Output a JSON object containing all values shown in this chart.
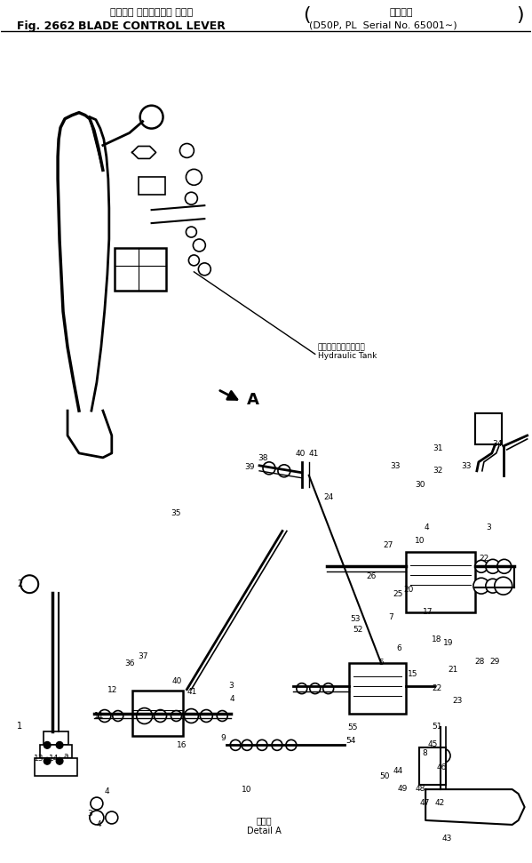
{
  "title_jp": "ブレード コントロール レバー",
  "title_en": "BLADE CONTROL LEVER",
  "fig_num": "Fig. 2662",
  "subtitle": "(D50P, PL  Serial No. 65001∼)",
  "subtitle_label": "適用号等",
  "background_color": "#ffffff",
  "border_color": "#000000",
  "text_color": "#000000",
  "figsize": [
    5.99,
    9.71
  ],
  "dpi": 100,
  "hydraulic_tank_jp": "ハイドロリックタンク",
  "hydraulic_tank_en": "Hydraulic Tank",
  "detail_a_jp": "イ詳細",
  "detail_a_en": "Detail A",
  "arrow_label": "A"
}
